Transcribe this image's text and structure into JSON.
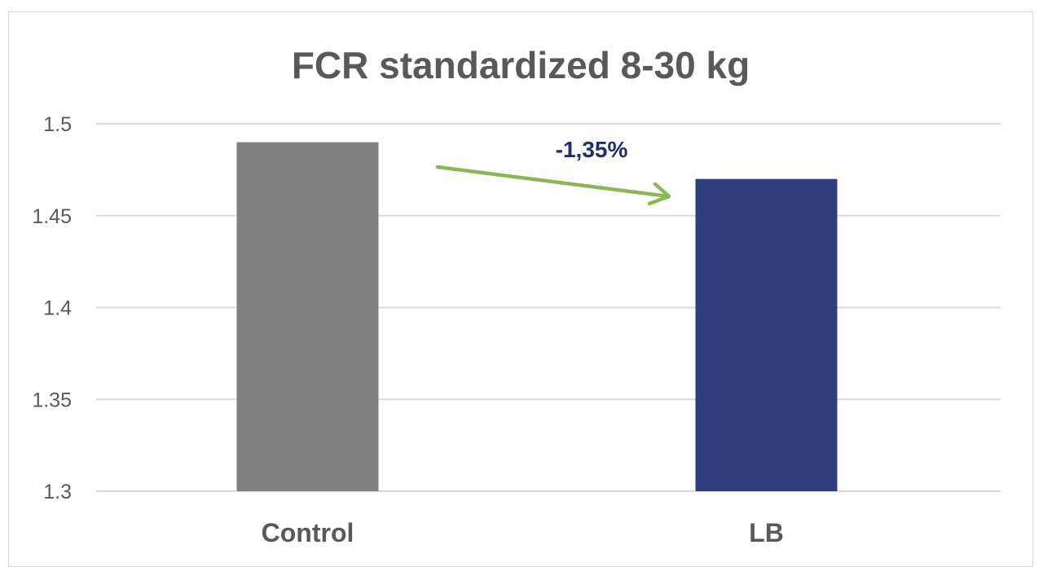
{
  "chart_data": {
    "type": "bar",
    "title": "FCR standardized 8-30 kg",
    "xlabel": "",
    "ylabel": "",
    "categories": [
      "Control",
      "LB"
    ],
    "values": [
      1.49,
      1.47
    ],
    "ylim": [
      1.3,
      1.5
    ],
    "yticks": [
      1.3,
      1.35,
      1.4,
      1.45,
      1.5
    ],
    "ytick_labels": [
      "1.3",
      "1.35",
      "1.4",
      "1.45",
      "1.5"
    ],
    "grid": true,
    "legend": "none",
    "bar_colors": [
      "#808080",
      "#2f3f7c"
    ],
    "annotation": {
      "text": "-1,35%",
      "color": "#1f2f6b",
      "arrow_color": "#8cb854"
    }
  }
}
